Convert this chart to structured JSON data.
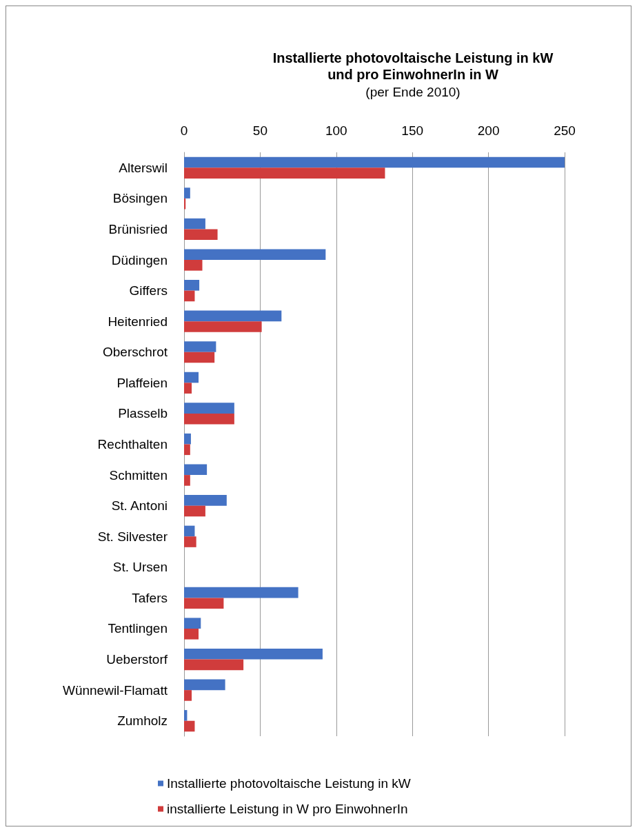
{
  "chart_data": {
    "type": "bar",
    "orientation": "horizontal",
    "title": "Installierte photovoltaische Leistung in kW\nund pro EinwohnerIn in W",
    "subtitle": "(per Ende 2010)",
    "categories": [
      "Alterswil",
      "Bösingen",
      "Brünisried",
      "Düdingen",
      "Giffers",
      "Heitenried",
      "Oberschrot",
      "Plaffeien",
      "Plasselb",
      "Rechthalten",
      "Schmitten",
      "St. Antoni",
      "St. Silvester",
      "St. Ursen",
      "Tafers",
      "Tentlingen",
      "Ueberstorf",
      "Wünnewil-Flamatt",
      "Zumholz"
    ],
    "series": [
      {
        "name": "Installierte photovoltaische Leistung in kW",
        "color": "#4472c4",
        "values": [
          250,
          4,
          14,
          93,
          10,
          64,
          21,
          9.5,
          33,
          4.5,
          15,
          28,
          7,
          0,
          75,
          11,
          91,
          27,
          2
        ]
      },
      {
        "name": "installierte Leistung in W pro EinwohnerIn",
        "color": "#d03c3c",
        "values": [
          132,
          1,
          22,
          12,
          7,
          51,
          20,
          5,
          33,
          4,
          4,
          14,
          8,
          0,
          26,
          9.5,
          39,
          5,
          7
        ]
      }
    ],
    "xlim": [
      0,
      250
    ],
    "xticks": [
      0,
      50,
      100,
      150,
      200,
      250
    ],
    "grid": "x",
    "legend": "bottom"
  }
}
